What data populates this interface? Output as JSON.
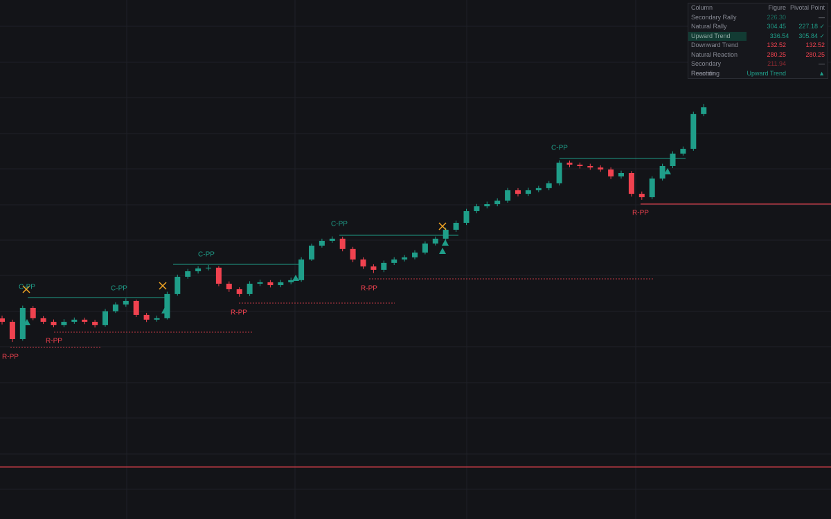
{
  "chart_data": {
    "type": "candlestick",
    "open": [
      216.0,
      214.1,
      204.4,
      221.9,
      216.1,
      214.1,
      212.2,
      214.1,
      215.3,
      214.1,
      212.2,
      220.0,
      223.8,
      225.8,
      218.0,
      215.3,
      216.1,
      229.7,
      239.4,
      242.5,
      244.1,
      244.5,
      235.5,
      232.4,
      229.7,
      235.5,
      236.3,
      234.7,
      236.3,
      237.5,
      249.1,
      256.9,
      259.6,
      260.8,
      255.0,
      249.1,
      245.2,
      243.3,
      247.2,
      249.1,
      250.3,
      253.0,
      258.1,
      260.8,
      265.8,
      269.7,
      276.3,
      279.0,
      280.2,
      282.2,
      288.0,
      286.0,
      288.0,
      289.2,
      291.9,
      303.5,
      302.4,
      301.6,
      300.8,
      299.7,
      295.8,
      297.7,
      286.0,
      284.1,
      294.6,
      301.6,
      308.6,
      311.3,
      330.8
    ],
    "high": [
      217.5,
      215.3,
      223.2,
      223.0,
      217.3,
      215.4,
      215.6,
      216.5,
      216.4,
      215.2,
      221.3,
      225.0,
      227.2,
      226.6,
      219.1,
      217.5,
      231.0,
      240.6,
      243.8,
      245.3,
      246.0,
      245.4,
      236.8,
      233.5,
      236.9,
      237.8,
      237.5,
      237.6,
      238.9,
      250.4,
      258.0,
      260.8,
      262.1,
      261.9,
      256.2,
      250.3,
      246.4,
      248.5,
      250.4,
      251.6,
      254.3,
      259.3,
      262.0,
      267.0,
      271.0,
      277.6,
      280.3,
      281.6,
      283.5,
      289.3,
      289.2,
      289.4,
      290.5,
      293.2,
      304.8,
      304.7,
      303.6,
      302.9,
      302.0,
      300.9,
      299.0,
      298.8,
      287.3,
      295.9,
      302.9,
      309.9,
      312.6,
      332.1,
      336.5
    ],
    "low": [
      212.6,
      202.8,
      203.5,
      215.0,
      212.9,
      211.0,
      211.1,
      213.0,
      212.8,
      210.9,
      211.4,
      219.1,
      222.5,
      216.8,
      214.0,
      214.2,
      215.4,
      228.8,
      238.3,
      241.2,
      243.0,
      234.1,
      230.9,
      228.2,
      228.6,
      234.2,
      233.4,
      233.5,
      235.2,
      236.6,
      248.3,
      255.8,
      258.5,
      253.7,
      247.6,
      243.8,
      241.5,
      242.0,
      246.0,
      248.0,
      249.2,
      252.0,
      257.0,
      259.7,
      264.6,
      268.5,
      275.1,
      277.8,
      279.0,
      281.0,
      284.6,
      284.8,
      286.9,
      288.0,
      290.7,
      301.0,
      300.2,
      299.5,
      298.4,
      294.3,
      294.6,
      284.5,
      282.6,
      283.0,
      293.5,
      300.4,
      307.5,
      310.2,
      329.6
    ],
    "close": [
      214.1,
      204.4,
      221.9,
      216.1,
      214.1,
      212.2,
      214.1,
      215.3,
      214.1,
      212.2,
      220.0,
      223.8,
      225.8,
      218.0,
      215.3,
      216.1,
      229.7,
      239.4,
      242.5,
      244.1,
      244.5,
      235.5,
      232.4,
      229.7,
      235.5,
      236.3,
      234.7,
      236.3,
      237.5,
      249.1,
      256.9,
      259.6,
      260.8,
      255.0,
      249.1,
      245.2,
      243.3,
      247.2,
      249.1,
      250.3,
      253.0,
      258.1,
      260.8,
      265.8,
      269.7,
      276.3,
      279.0,
      280.2,
      282.2,
      288.0,
      286.0,
      288.0,
      289.2,
      291.9,
      303.5,
      302.4,
      301.6,
      300.8,
      299.7,
      295.8,
      297.7,
      286.0,
      284.1,
      294.6,
      301.6,
      308.6,
      311.3,
      330.8,
      334.6
    ],
    "up_color": "#1f9e89",
    "down_color": "#f0424f",
    "ylim": [
      103.3,
      394.9
    ],
    "resistance": [
      227.7,
      246.4,
      262.7,
      305.9
    ],
    "support": [
      199.7,
      208.3,
      224.6,
      238.2
    ],
    "levels": [
      280.25,
      132.52
    ],
    "level_color": "#e0404c",
    "annotations": [
      {
        "text": "C-PP",
        "color": "#1f9e89"
      },
      {
        "text": "C-PP",
        "color": "#1f9e89"
      },
      {
        "text": "C-PP",
        "color": "#1f9e89"
      },
      {
        "text": "C-PP",
        "color": "#1f9e89"
      },
      {
        "text": "C-PP",
        "color": "#1f9e89"
      },
      {
        "text": "R-PP",
        "color": "#f0424f"
      },
      {
        "text": "R-PP",
        "color": "#f0424f"
      },
      {
        "text": "R-PP",
        "color": "#f0424f"
      },
      {
        "text": "R-PP",
        "color": "#f0424f"
      },
      {
        "text": "R-PP",
        "color": "#f0424f"
      }
    ]
  },
  "table": {
    "header": [
      "Column",
      "Figure",
      "Pivotal Point"
    ],
    "rows": [
      [
        "Secondary Rally",
        "226.30",
        "—"
      ],
      [
        "Natural Rally",
        "304.45",
        "227.18 ✓"
      ],
      [
        "Upward Trend",
        "336.54",
        "305.84 ✓"
      ],
      [
        "Downward Trend",
        "132.52",
        "132.52"
      ],
      [
        "Natural Reaction",
        "280.25",
        "280.25"
      ],
      [
        "Secondary Reaction",
        "211.94",
        "—"
      ],
      [
        "Recording",
        "Upward Trend",
        "▲"
      ]
    ]
  }
}
